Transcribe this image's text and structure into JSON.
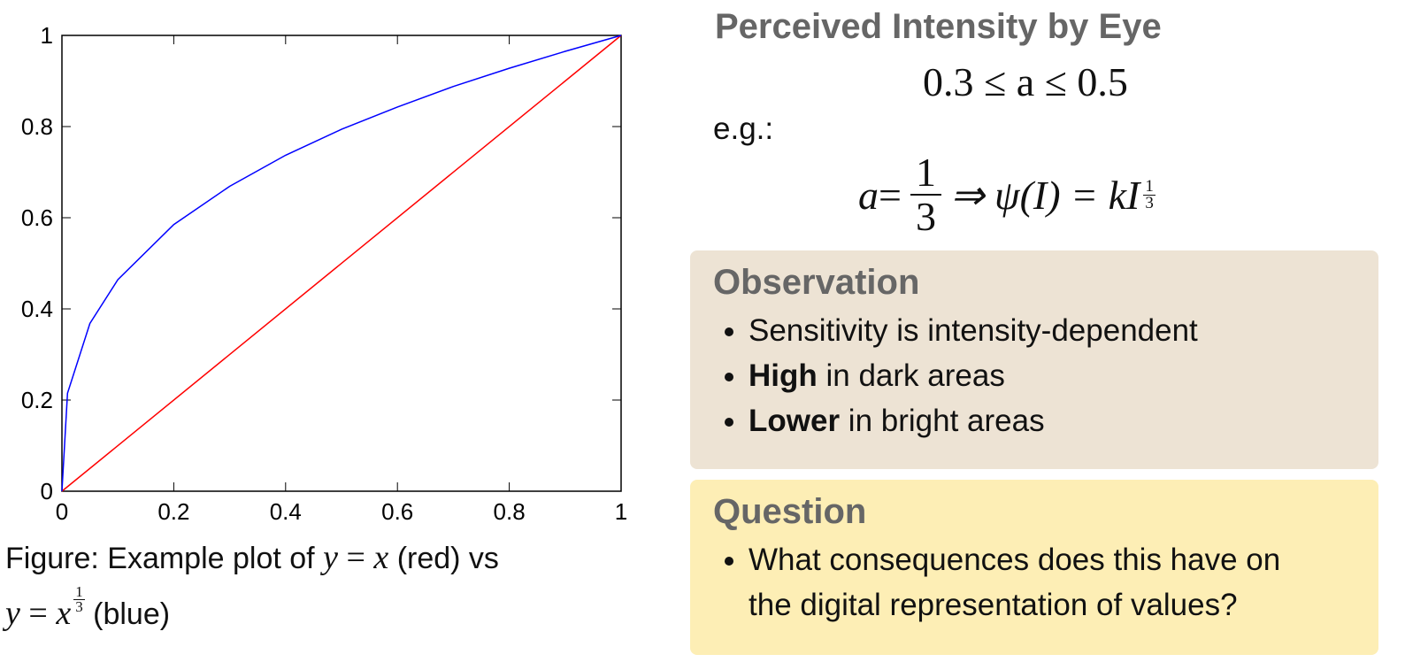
{
  "chart_data": {
    "type": "line",
    "x_ticks": [
      "0",
      "0.2",
      "0.4",
      "0.6",
      "0.8",
      "1"
    ],
    "y_ticks": [
      "0",
      "0.2",
      "0.4",
      "0.6",
      "0.8",
      "1"
    ],
    "xlim": [
      0,
      1
    ],
    "ylim": [
      0,
      1
    ],
    "grid": false,
    "series": [
      {
        "color": "#ff0000",
        "function": "y = x",
        "x": [
          0,
          1
        ],
        "y": [
          0,
          1
        ]
      },
      {
        "color": "#0000ff",
        "function": "y = x^(1/3)",
        "x": [
          0,
          0.01,
          0.05,
          0.1,
          0.2,
          0.3,
          0.4,
          0.5,
          0.6,
          0.7,
          0.8,
          0.9,
          1
        ],
        "y": [
          0,
          0.215,
          0.368,
          0.464,
          0.585,
          0.669,
          0.737,
          0.794,
          0.843,
          0.888,
          0.928,
          0.965,
          1
        ]
      }
    ]
  },
  "caption": {
    "prefix": "Figure: Example plot of ",
    "y": "y",
    "eq": " = ",
    "x": "x",
    "red": " (red) vs",
    "frac_num": "1",
    "frac_den": "3",
    "blue": " (blue)"
  },
  "right": {
    "title": "Perceived Intensity by Eye",
    "eq1": "0.3 ≤ a ≤ 0.5",
    "eg": "e.g.:",
    "eq2": {
      "a": "a",
      "eq": " =",
      "num": "1",
      "den": "3",
      "implies": "⇒ ψ(I) = kI",
      "exp_num": "1",
      "exp_den": "3"
    }
  },
  "observation": {
    "title": "Observation",
    "items": [
      {
        "bold": "",
        "text": "Sensitivity is intensity-dependent"
      },
      {
        "bold": "High",
        "text": " in dark areas"
      },
      {
        "bold": "Lower",
        "text": " in bright areas"
      }
    ]
  },
  "question": {
    "title": "Question",
    "items": [
      {
        "text": "What consequences does this have on the digital representation of values?"
      }
    ]
  }
}
